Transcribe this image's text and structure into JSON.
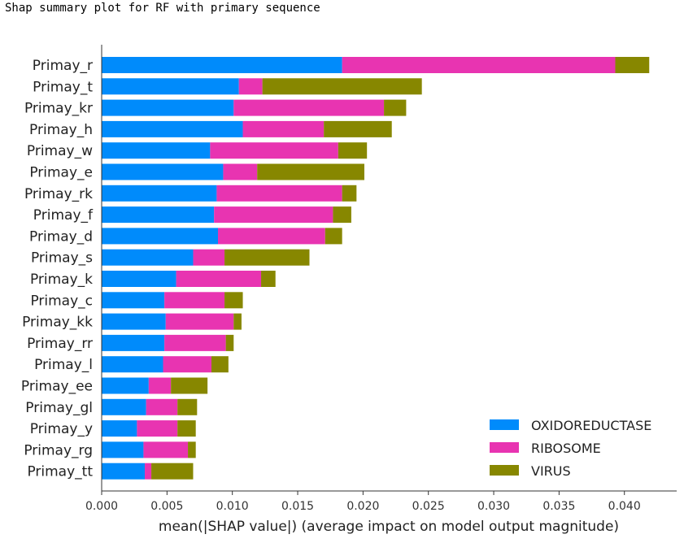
{
  "caption": "Shap summary plot for RF with primary sequence",
  "chart_data": {
    "type": "bar",
    "orientation": "horizontal",
    "stacked": true,
    "categories": [
      "Primay_r",
      "Primay_t",
      "Primay_kr",
      "Primay_h",
      "Primay_w",
      "Primay_e",
      "Primay_rk",
      "Primay_f",
      "Primay_d",
      "Primay_s",
      "Primay_k",
      "Primay_c",
      "Primay_kk",
      "Primay_rr",
      "Primay_l",
      "Primay_ee",
      "Primay_gl",
      "Primay_y",
      "Primay_rg",
      "Primay_tt"
    ],
    "series": [
      {
        "name": "OXIDOREDUCTASE",
        "color": "#008bfb",
        "values": [
          0.0184,
          0.0105,
          0.0101,
          0.0108,
          0.0083,
          0.0093,
          0.0088,
          0.0086,
          0.0089,
          0.007,
          0.0057,
          0.0048,
          0.0049,
          0.0048,
          0.0047,
          0.0036,
          0.0034,
          0.0027,
          0.0032,
          0.0033
        ]
      },
      {
        "name": "RIBOSOME",
        "color": "#e834b1",
        "values": [
          0.0209,
          0.0018,
          0.0115,
          0.0062,
          0.0098,
          0.0026,
          0.0096,
          0.0091,
          0.0082,
          0.0024,
          0.0065,
          0.0046,
          0.0052,
          0.0047,
          0.0037,
          0.0017,
          0.0024,
          0.0031,
          0.0034,
          0.0005
        ]
      },
      {
        "name": "VIRUS",
        "color": "#878700",
        "values": [
          0.0026,
          0.0122,
          0.0017,
          0.0052,
          0.0022,
          0.0082,
          0.0011,
          0.0014,
          0.0013,
          0.0065,
          0.0011,
          0.0014,
          0.0006,
          0.0006,
          0.0013,
          0.0028,
          0.0015,
          0.0014,
          0.0006,
          0.0032
        ]
      }
    ],
    "xlabel": "mean(|SHAP value|) (average impact on model output magnitude)",
    "xlim": [
      0,
      0.044
    ],
    "xticks": [
      "0.000",
      "0.005",
      "0.010",
      "0.015",
      "0.020",
      "0.025",
      "0.030",
      "0.035",
      "0.040"
    ],
    "legend_position": "lower-right",
    "grid": false
  }
}
